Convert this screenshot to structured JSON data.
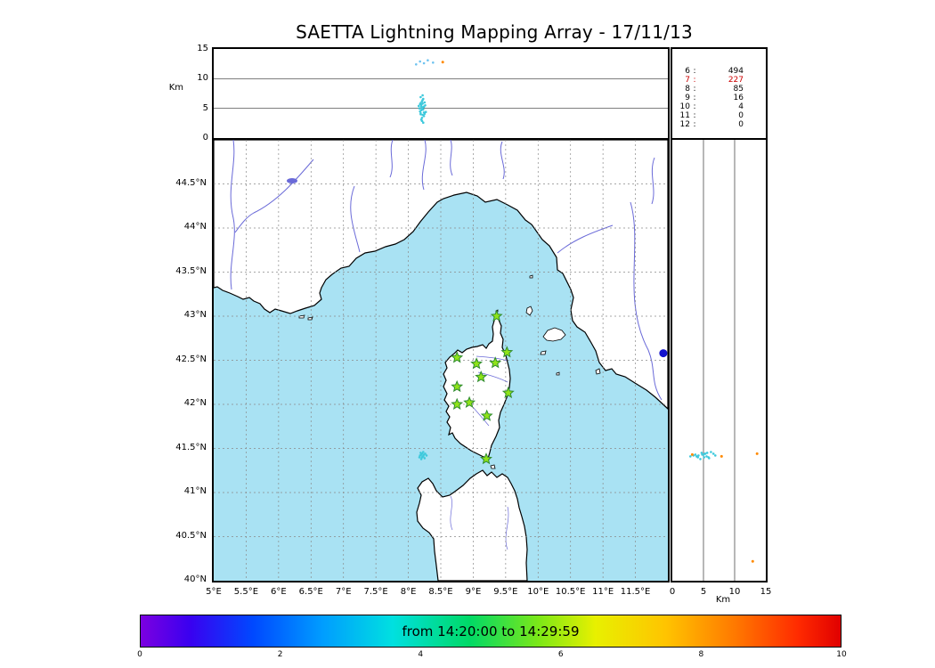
{
  "title": "SAETTA Lightning Mapping Array - 17/11/13",
  "colors": {
    "sea": "#a9e2f3",
    "land": "#ffffff",
    "coast": "#000000",
    "river": "#6a6ad8",
    "grid": "#8a8a8a",
    "stats_highlight": "#cc0000",
    "storm_cyan": "#3ec9dc",
    "late_orange": "#ff8a00",
    "station_green": "#8fe319",
    "blue_marker": "#1111cc"
  },
  "top_panel": {
    "ylabel": "Km",
    "yticks": [
      "0",
      "5",
      "10",
      "15"
    ]
  },
  "stats": {
    "separator": ":",
    "rows": [
      {
        "label": "6",
        "value": "494",
        "color": "#000000"
      },
      {
        "label": "7",
        "value": "227",
        "color": "#cc0000"
      },
      {
        "label": "8",
        "value": "85",
        "color": "#000000"
      },
      {
        "label": "9",
        "value": "16",
        "color": "#000000"
      },
      {
        "label": "10",
        "value": "4",
        "color": "#000000"
      },
      {
        "label": "11",
        "value": "0",
        "color": "#000000"
      },
      {
        "label": "12",
        "value": "0",
        "color": "#000000"
      }
    ]
  },
  "map": {
    "lat_ticks": [
      "44.5°N",
      "44°N",
      "43.5°N",
      "43°N",
      "42.5°N",
      "42°N",
      "41.5°N",
      "41°N",
      "40.5°N",
      "40°N"
    ],
    "lon_ticks": [
      "5°E",
      "5.5°E",
      "6°E",
      "6.5°E",
      "7°E",
      "7.5°E",
      "8°E",
      "8.5°E",
      "9°E",
      "9.5°E",
      "10°E",
      "10.5°E",
      "11°E",
      "11.5°E"
    ],
    "lon_range": [
      5,
      12
    ],
    "lat_range": [
      40,
      45
    ]
  },
  "right_panel": {
    "xlabel": "Km",
    "xticks": [
      "0",
      "5",
      "10",
      "15"
    ]
  },
  "colorbar": {
    "label": "from 14:20:00 to 14:29:59",
    "ticks": [
      "0",
      "2",
      "4",
      "6",
      "8",
      "10"
    ],
    "range": [
      0,
      10
    ],
    "gradient": [
      "#7c00e0 0%",
      "#3a00f0 7%",
      "#0048ff 16%",
      "#009dff 26%",
      "#00e0e0 36%",
      "#00d966 47%",
      "#7ee817 57%",
      "#e8f000 65%",
      "#ffc400 75%",
      "#ff7800 85%",
      "#ff2a00 94%",
      "#e00000 100%"
    ]
  },
  "chart_data": [
    {
      "type": "scatter",
      "name": "altitude-vs-longitude",
      "ylabel": "Km",
      "xlim": [
        5,
        12
      ],
      "ylim": [
        0,
        15
      ],
      "yticks": [
        0,
        5,
        10,
        15
      ],
      "gridlines_km": [
        5,
        10
      ],
      "series": [
        {
          "name": "vhf-sources-storm",
          "color": "#3ec9dc",
          "size": 1.3,
          "points": [
            [
              8.19,
              4.2
            ],
            [
              8.21,
              5.1
            ],
            [
              8.23,
              4.8
            ],
            [
              8.2,
              5.6
            ],
            [
              8.22,
              3.9
            ],
            [
              8.24,
              5.3
            ],
            [
              8.18,
              4.5
            ],
            [
              8.21,
              6.2
            ],
            [
              8.25,
              4.1
            ],
            [
              8.19,
              5.9
            ],
            [
              8.23,
              6.6
            ],
            [
              8.21,
              3.4
            ],
            [
              8.17,
              5.0
            ],
            [
              8.26,
              5.5
            ],
            [
              8.2,
              4.7
            ],
            [
              8.22,
              5.8
            ],
            [
              8.24,
              3.7
            ],
            [
              8.19,
              6.9
            ],
            [
              8.21,
              2.9
            ],
            [
              8.23,
              5.2
            ],
            [
              8.27,
              4.4
            ],
            [
              8.16,
              5.4
            ],
            [
              8.22,
              7.2
            ],
            [
              8.2,
              3.1
            ],
            [
              8.25,
              6.0
            ],
            [
              8.21,
              4.9
            ],
            [
              8.18,
              5.7
            ],
            [
              8.24,
              4.3
            ],
            [
              8.22,
              6.4
            ],
            [
              8.2,
              5.3
            ],
            [
              8.23,
              2.6
            ],
            [
              8.19,
              4.0
            ]
          ]
        },
        {
          "name": "vhf-sources-high",
          "color": "#6fc3f0",
          "size": 1.3,
          "points": [
            [
              8.12,
              12.4
            ],
            [
              8.18,
              12.9
            ],
            [
              8.24,
              12.6
            ],
            [
              8.3,
              13.1
            ],
            [
              8.38,
              12.7
            ]
          ]
        },
        {
          "name": "vhf-sources-late",
          "color": "#ff8a00",
          "size": 1.5,
          "points": [
            [
              8.53,
              12.8
            ]
          ]
        }
      ]
    },
    {
      "type": "scatter",
      "name": "plan-view-map",
      "xlim": [
        5,
        12
      ],
      "ylim": [
        40,
        45
      ],
      "series": [
        {
          "name": "lma-stations",
          "marker": "star",
          "color": "#8fe319",
          "stroke": "#2f8b2f",
          "size": 6,
          "points": [
            [
              9.36,
              43.0
            ],
            [
              8.75,
              42.53
            ],
            [
              9.05,
              42.46
            ],
            [
              9.34,
              42.47
            ],
            [
              9.52,
              42.59
            ],
            [
              9.12,
              42.31
            ],
            [
              8.75,
              42.2
            ],
            [
              9.54,
              42.13
            ],
            [
              8.75,
              42.0
            ],
            [
              8.94,
              42.02
            ],
            [
              9.21,
              41.87
            ],
            [
              9.2,
              41.38
            ]
          ]
        },
        {
          "name": "vhf-sources-storm",
          "color": "#3ec9dc",
          "size": 1.3,
          "points": [
            [
              8.18,
              41.42
            ],
            [
              8.21,
              41.4
            ],
            [
              8.24,
              41.43
            ],
            [
              8.19,
              41.45
            ],
            [
              8.22,
              41.41
            ],
            [
              8.26,
              41.44
            ],
            [
              8.2,
              41.38
            ],
            [
              8.23,
              41.46
            ],
            [
              8.17,
              41.4
            ],
            [
              8.25,
              41.39
            ],
            [
              8.21,
              41.44
            ],
            [
              8.28,
              41.42
            ],
            [
              8.2,
              41.43
            ],
            [
              8.23,
              41.41
            ]
          ]
        },
        {
          "name": "blue-marker",
          "color": "#1111cc",
          "size": 4.5,
          "points": [
            [
              11.93,
              42.58
            ]
          ]
        }
      ]
    },
    {
      "type": "scatter",
      "name": "altitude-vs-latitude",
      "xlabel": "Km",
      "xlim": [
        0,
        15
      ],
      "ylim": [
        40,
        45
      ],
      "xticks": [
        0,
        5,
        10,
        15
      ],
      "gridlines_km": [
        5,
        10
      ],
      "series": [
        {
          "name": "vhf-sources-storm",
          "color": "#3ec9dc",
          "size": 1.3,
          "points": [
            [
              4.2,
              41.42
            ],
            [
              5.1,
              41.4
            ],
            [
              4.8,
              41.43
            ],
            [
              5.6,
              41.45
            ],
            [
              3.9,
              41.41
            ],
            [
              5.3,
              41.44
            ],
            [
              4.5,
              41.38
            ],
            [
              6.2,
              41.46
            ],
            [
              4.1,
              41.4
            ],
            [
              5.9,
              41.39
            ],
            [
              6.6,
              41.44
            ],
            [
              3.4,
              41.42
            ],
            [
              5.0,
              41.43
            ],
            [
              5.5,
              41.41
            ],
            [
              4.7,
              41.45
            ],
            [
              5.8,
              41.4
            ],
            [
              3.7,
              41.43
            ],
            [
              6.9,
              41.42
            ],
            [
              2.9,
              41.41
            ],
            [
              5.2,
              41.44
            ]
          ]
        },
        {
          "name": "vhf-sources-late",
          "color": "#ff8a00",
          "size": 1.5,
          "points": [
            [
              3.2,
              41.43
            ],
            [
              7.9,
              41.41
            ],
            [
              12.9,
              40.22
            ],
            [
              13.6,
              41.44
            ]
          ]
        }
      ]
    },
    {
      "type": "colorbar",
      "name": "time-colorbar",
      "label": "from 14:20:00 to 14:29:59",
      "range": [
        0,
        10
      ],
      "ticks": [
        0,
        2,
        4,
        6,
        8,
        10
      ]
    }
  ]
}
